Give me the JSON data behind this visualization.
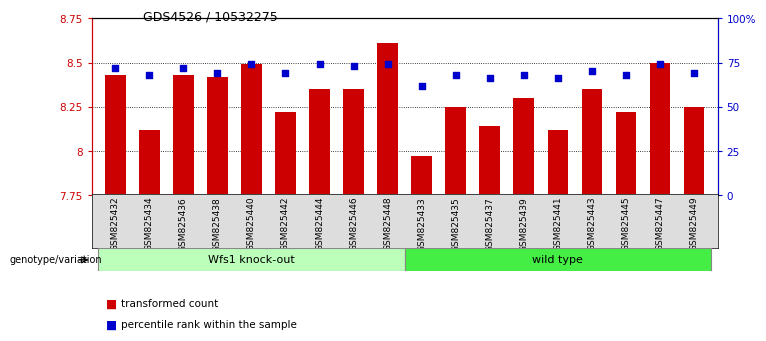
{
  "title": "GDS4526 / 10532275",
  "samples": [
    "GSM825432",
    "GSM825434",
    "GSM825436",
    "GSM825438",
    "GSM825440",
    "GSM825442",
    "GSM825444",
    "GSM825446",
    "GSM825448",
    "GSM825433",
    "GSM825435",
    "GSM825437",
    "GSM825439",
    "GSM825441",
    "GSM825443",
    "GSM825445",
    "GSM825447",
    "GSM825449"
  ],
  "bar_values": [
    8.43,
    8.12,
    8.43,
    8.42,
    8.49,
    8.22,
    8.35,
    8.35,
    8.61,
    7.97,
    8.25,
    8.14,
    8.3,
    8.12,
    8.35,
    8.22,
    8.5,
    8.25
  ],
  "percentile_values": [
    72,
    68,
    72,
    69,
    74,
    69,
    74,
    73,
    74,
    62,
    68,
    66,
    68,
    66,
    70,
    68,
    74,
    69
  ],
  "ylim_left": [
    7.75,
    8.75
  ],
  "ylim_right": [
    0,
    100
  ],
  "bar_color": "#cc0000",
  "percentile_color": "#0000cc",
  "bar_width": 0.6,
  "group_labels": [
    "Wfs1 knock-out",
    "wild type"
  ],
  "group_sizes": [
    9,
    9
  ],
  "group_colors_light": "#bbffbb",
  "group_colors_dark": "#44ee44",
  "genotype_label": "genotype/variation",
  "legend_items": [
    "transformed count",
    "percentile rank within the sample"
  ],
  "grid_yticks_left": [
    7.75,
    8.0,
    8.25,
    8.5,
    8.75
  ],
  "grid_yticks_right": [
    0,
    25,
    50,
    75,
    100
  ],
  "yticklabels_left": [
    "7.75",
    "8",
    "8.25",
    "8.5",
    "8.75"
  ],
  "yticklabels_right": [
    "0",
    "25",
    "50",
    "75",
    "100%"
  ]
}
